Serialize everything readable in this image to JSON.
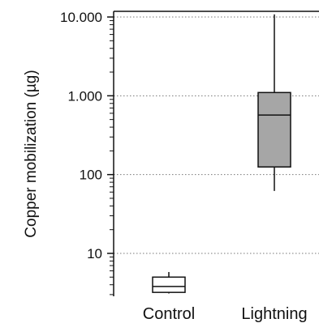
{
  "chart_data": {
    "type": "box",
    "ylabel": "Copper mobilization (µg)",
    "yscale": "log",
    "ylim": [
      3,
      12000
    ],
    "yticks": [
      {
        "value": 10000,
        "label": "10.000"
      },
      {
        "value": 1000,
        "label": "1.000"
      },
      {
        "value": 100,
        "label": "100"
      },
      {
        "value": 10,
        "label": "10"
      }
    ],
    "grid": "dotted horizontal at major ticks",
    "categories": [
      "Control",
      "Lightning"
    ],
    "boxes": [
      {
        "name": "Control",
        "min": 3.1,
        "q1": 3.2,
        "median": 3.8,
        "q3": 5.0,
        "max": 5.8,
        "fill": "#ffffff"
      },
      {
        "name": "Lightning",
        "min": 62,
        "q1": 125,
        "median": 570,
        "q3": 1100,
        "max": 10800,
        "fill": "#a6a6a6"
      }
    ]
  }
}
